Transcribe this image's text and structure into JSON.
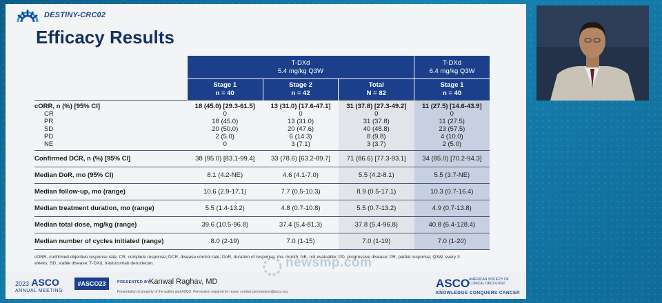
{
  "header": {
    "study": "DESTINY-CRC02",
    "title": "Efficacy Results"
  },
  "table": {
    "groups": [
      {
        "line1": "T-DXd",
        "line2": "5.4 mg/kg Q3W"
      },
      {
        "line1": "T-DXd",
        "line2": "6.4 mg/kg Q3W"
      }
    ],
    "columns": [
      {
        "line1": "Stage 1",
        "line2": "n = 40"
      },
      {
        "line1": "Stage 2",
        "line2": "n = 42"
      },
      {
        "line1": "Total",
        "line2": "N = 82"
      },
      {
        "line1": "Stage 1",
        "line2": "n = 40"
      }
    ],
    "corr": {
      "label": "cORR, n (%) [95% CI]",
      "values": [
        "18 (45.0) [29.3-61.5]",
        "13 (31.0) [17.6-47.1]",
        "31 (37.8) [27.3-49.2]",
        "11 (27.5) [14.6-43.9]"
      ],
      "sub": [
        {
          "label": "CR",
          "values": [
            "0",
            "0",
            "0",
            "0"
          ]
        },
        {
          "label": "PR",
          "values": [
            "18 (45.0)",
            "13 (31.0)",
            "31 (37.8)",
            "11 (27.5)"
          ]
        },
        {
          "label": "SD",
          "values": [
            "20 (50.0)",
            "20 (47.6)",
            "40 (48.8)",
            "23 (57.5)"
          ]
        },
        {
          "label": "PD",
          "values": [
            "2 (5.0)",
            "6 (14.3)",
            "8 (9.8)",
            "4 (10.0)"
          ]
        },
        {
          "label": "NE",
          "values": [
            "0",
            "3 (7.1)",
            "3 (3.7)",
            "2 (5.0)"
          ]
        }
      ]
    },
    "rows": [
      {
        "label": "Confirmed DCR, n (%) [95% CI]",
        "values": [
          "38 (95.0) [83.1-99.4]",
          "33 (78.6) [63.2-89.7]",
          "71 (86.6) [77.3-93.1]",
          "34 (85.0) [70.2-94.3]"
        ]
      },
      {
        "label": "Median DoR, mo (95% CI)",
        "values": [
          "8.1 (4.2-NE)",
          "4.6 (4.1-7.0)",
          "5.5 (4.2-8.1)",
          "5.5 (3.7-NE)"
        ]
      },
      {
        "label": "Median follow-up, mo (range)",
        "values": [
          "10.6 (2.9-17.1)",
          "7.7 (0.5-10.3)",
          "8.9 (0.5-17.1)",
          "10.3 (0.7-16.4)"
        ]
      },
      {
        "label": "Median treatment duration, mo (range)",
        "values": [
          "5.5 (1.4-13.2)",
          "4.8 (0.7-10.8)",
          "5.5 (0.7-13.2)",
          "4.9 (0.7-13.8)"
        ]
      },
      {
        "label": "Median total dose, mg/kg (range)",
        "values": [
          "39.6 (10.5-96.8)",
          "37.4 (5.4-81.3)",
          "37.8 (5.4-96.8)",
          "40.8 (6.4-128.4)"
        ]
      },
      {
        "label": "Median number of cycles initiated (range)",
        "values": [
          "8.0 (2-19)",
          "7.0 (1-15)",
          "7.0 (1-19)",
          "7.0 (1-20)"
        ]
      }
    ]
  },
  "footnote": "cORR, confirmed objective response rate; CR, complete response; DCR, disease control rate; DoR, duration of response; mo, month; NE, not evaluable; PD, progressive disease; PR, partial response; Q3W, every 3 weeks; SD, stable disease; T-DXd, trastuzumab deruxtecan.",
  "footer": {
    "year": "2023",
    "asco_left": "ASCO",
    "meeting": "ANNUAL MEETING",
    "hashtag": "#ASCO23",
    "presented_by": "PRESENTED BY:",
    "presenter": "Kanwal Raghav, MD",
    "disclaimer": "Presentation is property of the author and ASCO. Permission required for reuse; contact permissions@asco.org.",
    "asco_right": "ASCO",
    "society": "AMERICAN SOCIETY OF CLINICAL ONCOLOGY",
    "tagline": "KNOWLEDGE CONQUERS CANCER"
  },
  "watermark": "newsmp.com",
  "colors": {
    "header_blue": "#1b3f8a",
    "title_navy": "#14315f",
    "col_total_bg": "#e2e4ea",
    "col_64_bg": "#c7d0e0"
  }
}
